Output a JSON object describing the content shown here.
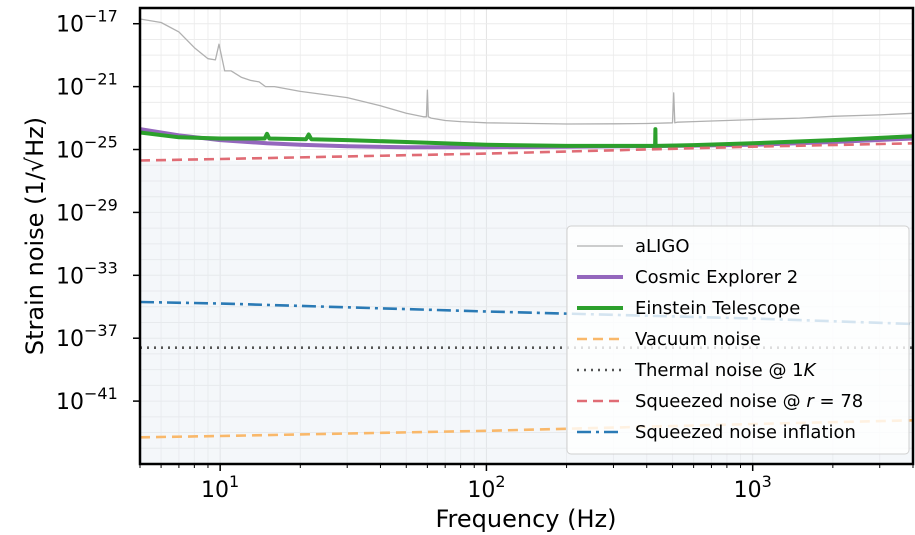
{
  "chart_data": {
    "type": "line",
    "xlabel": "Frequency (Hz)",
    "ylabel": "Strain noise (1/√Hz)",
    "x_scale": "log",
    "y_scale": "log",
    "xlim": [
      5,
      4000
    ],
    "ylim": [
      1e-45,
      1e-16
    ],
    "grid": true,
    "legend_position": "lower-right",
    "x_ticks": [
      {
        "value": 10,
        "base": "10",
        "exp": "1"
      },
      {
        "value": 100,
        "base": "10",
        "exp": "2"
      },
      {
        "value": 1000,
        "base": "10",
        "exp": "3"
      }
    ],
    "y_ticks": [
      {
        "value": 1e-17,
        "base": "10",
        "exp": "−17"
      },
      {
        "value": 1e-21,
        "base": "10",
        "exp": "−21"
      },
      {
        "value": 1e-25,
        "base": "10",
        "exp": "−25"
      },
      {
        "value": 1e-29,
        "base": "10",
        "exp": "−29"
      },
      {
        "value": 1e-33,
        "base": "10",
        "exp": "−33"
      },
      {
        "value": 1e-37,
        "base": "10",
        "exp": "−37"
      },
      {
        "value": 1e-41,
        "base": "10",
        "exp": "−41"
      }
    ],
    "shaded_band": {
      "color": "#dfe8f1",
      "opacity": 0.35,
      "y_top": 2e-26,
      "y_bottom": 1e-45
    },
    "series": [
      {
        "name": "aLIGO",
        "color": "#b0b0b0",
        "width": 1.3,
        "dash": "",
        "x": [
          5,
          6,
          7,
          8,
          9,
          9.6,
          9.9,
          10.4,
          11,
          12,
          13,
          14,
          14.8,
          16,
          20,
          30,
          40,
          50,
          58,
          59.5,
          60,
          60.5,
          62,
          70,
          80,
          100,
          150,
          200,
          300,
          400,
          500,
          505,
          510,
          520,
          600,
          700,
          800,
          1000,
          1500,
          2000,
          3000,
          4000
        ],
        "y": [
          2e-17,
          1.2e-17,
          3e-18,
          3e-19,
          6e-20,
          5e-20,
          5e-19,
          1e-20,
          1e-20,
          4e-21,
          2.5e-21,
          2e-21,
          1e-21,
          1e-21,
          5e-22,
          2e-22,
          6e-23,
          2e-23,
          1.2e-23,
          1.2e-23,
          6e-22,
          1.2e-23,
          1e-23,
          7e-24,
          6e-24,
          5e-24,
          4.5e-24,
          4.2e-24,
          4.3e-24,
          4.5e-24,
          5e-24,
          4e-22,
          5e-24,
          5.5e-24,
          6e-24,
          6.5e-24,
          7e-24,
          8e-24,
          1e-23,
          1.3e-23,
          1.6e-23,
          2e-23
        ]
      },
      {
        "name": "Cosmic Explorer 2",
        "color": "#9467bd",
        "width": 4,
        "dash": "",
        "x": [
          5,
          7,
          10,
          15,
          20,
          30,
          50,
          100,
          200,
          500,
          1000,
          2000,
          4000
        ],
        "y": [
          2e-24,
          8e-25,
          4e-25,
          2.5e-25,
          2e-25,
          1.6e-25,
          1.4e-25,
          1.4e-25,
          1.5e-25,
          1.7e-25,
          2e-25,
          3e-25,
          5e-25
        ]
      },
      {
        "name": "Einstein Telescope",
        "color": "#2ca02c",
        "width": 4,
        "dash": "",
        "x": [
          5,
          7,
          10,
          14.7,
          15,
          15.3,
          21,
          21.5,
          22,
          30,
          50,
          100,
          200,
          400,
          430,
          431,
          432,
          440,
          600,
          1000,
          2000,
          4000
        ],
        "y": [
          1.2e-24,
          6e-25,
          5e-25,
          5e-25,
          1e-24,
          5e-25,
          4.5e-25,
          9e-25,
          4.5e-25,
          4e-25,
          3e-25,
          2e-25,
          1.7e-25,
          1.7e-25,
          1.7e-25,
          2e-24,
          1.7e-25,
          1.7e-25,
          1.9e-25,
          2.5e-25,
          4e-25,
          7e-25
        ]
      },
      {
        "name": "Vacuum noise",
        "color": "#f9b86a",
        "width": 2.6,
        "dash": "10,6",
        "x": [
          5,
          10,
          100,
          1000,
          4000
        ],
        "y": [
          5e-44,
          6e-44,
          1.3e-43,
          3.5e-43,
          6e-43
        ]
      },
      {
        "name": "Thermal noise @ 1K",
        "color": "#555555",
        "width": 2.6,
        "dash": "2,5",
        "x": [
          5,
          4000
        ],
        "y": [
          2.5e-38,
          2.5e-38
        ]
      },
      {
        "name": "Squeezed noise @ r = 78",
        "color": "#e06c75",
        "width": 2.6,
        "dash": "10,6",
        "x": [
          5,
          10,
          100,
          1000,
          4000
        ],
        "y": [
          2e-26,
          2.5e-26,
          5.5e-26,
          1.5e-25,
          2.5e-25
        ]
      },
      {
        "name": "Squeezed noise inflation",
        "color": "#2a7ab5",
        "width": 2.6,
        "dash": "14,5,3,5",
        "x": [
          5,
          10,
          100,
          1000,
          4000
        ],
        "y": [
          2e-35,
          1.6e-35,
          5e-36,
          1.8e-36,
          8e-37
        ]
      }
    ],
    "legend": [
      {
        "label": "aLIGO"
      },
      {
        "label": "Cosmic Explorer 2"
      },
      {
        "label": "Einstein Telescope"
      },
      {
        "label": "Vacuum noise"
      },
      {
        "label_parts": [
          "Thermal noise @ 1",
          "K"
        ]
      },
      {
        "label_parts": [
          "Squeezed noise @ ",
          "r",
          " = 78"
        ]
      },
      {
        "label": "Squeezed noise inflation"
      }
    ]
  }
}
